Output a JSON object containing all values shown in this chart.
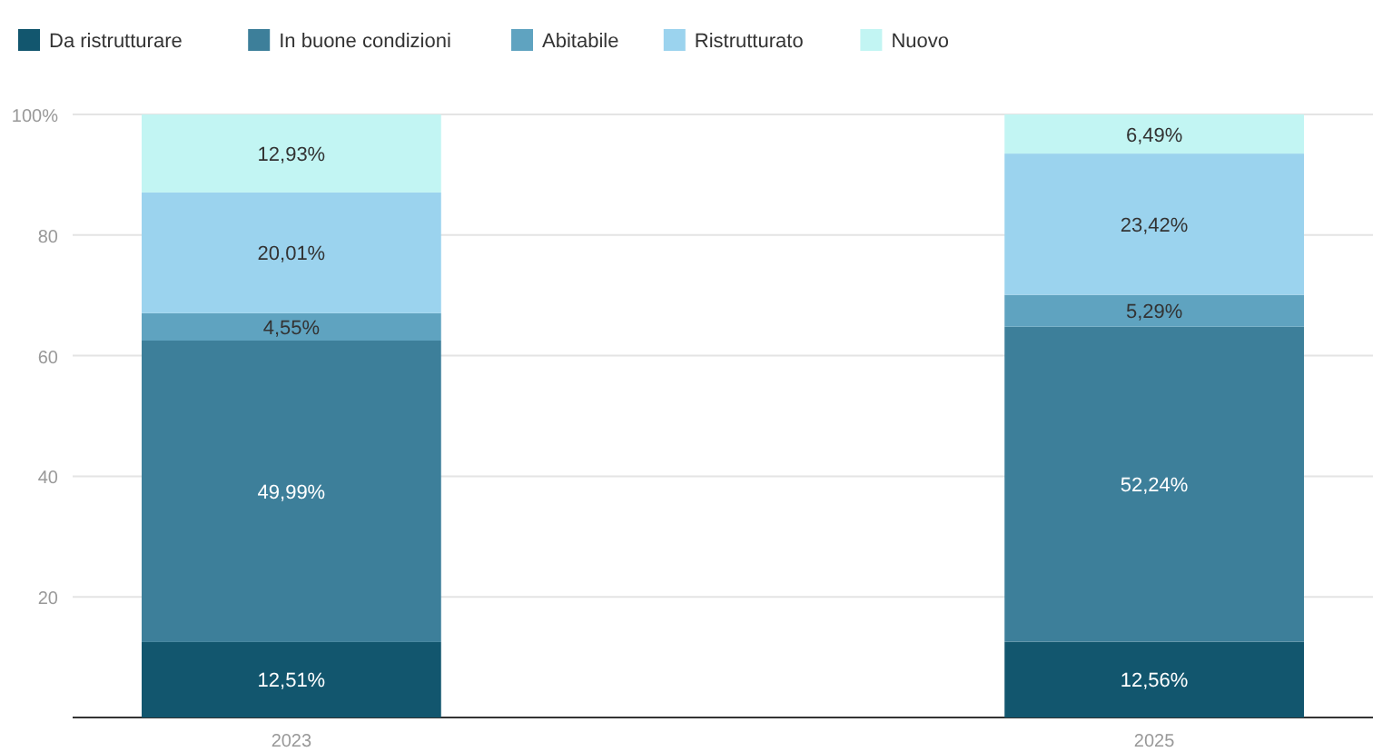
{
  "chart_data": {
    "type": "bar",
    "stacked": true,
    "categories": [
      "2023",
      "2025"
    ],
    "series": [
      {
        "name": "Da ristrutturare",
        "color": "#12566e",
        "values": [
          12.51,
          12.56
        ]
      },
      {
        "name": "In buone condizioni",
        "color": "#3d7f9a",
        "values": [
          49.99,
          52.24
        ]
      },
      {
        "name": "Abitabile",
        "color": "#5fa3c0",
        "values": [
          4.55,
          5.29
        ]
      },
      {
        "name": "Ristrutturato",
        "color": "#9bd3ee",
        "values": [
          20.01,
          23.42
        ]
      },
      {
        "name": "Nuovo",
        "color": "#c2f5f3",
        "values": [
          12.93,
          6.49
        ]
      }
    ],
    "value_labels": [
      [
        "12,51%",
        "12,56%"
      ],
      [
        "49,99%",
        "52,24%"
      ],
      [
        "4,55%",
        "5,29%"
      ],
      [
        "20,01%",
        "23,42%"
      ],
      [
        "12,93%",
        "6,49%"
      ]
    ],
    "ylim": [
      0,
      100
    ],
    "yticks": [
      {
        "value": 0,
        "label": null
      },
      20,
      40,
      60,
      80,
      {
        "value": 100,
        "label": "100%"
      }
    ],
    "grid": "y",
    "legend": "top left"
  }
}
